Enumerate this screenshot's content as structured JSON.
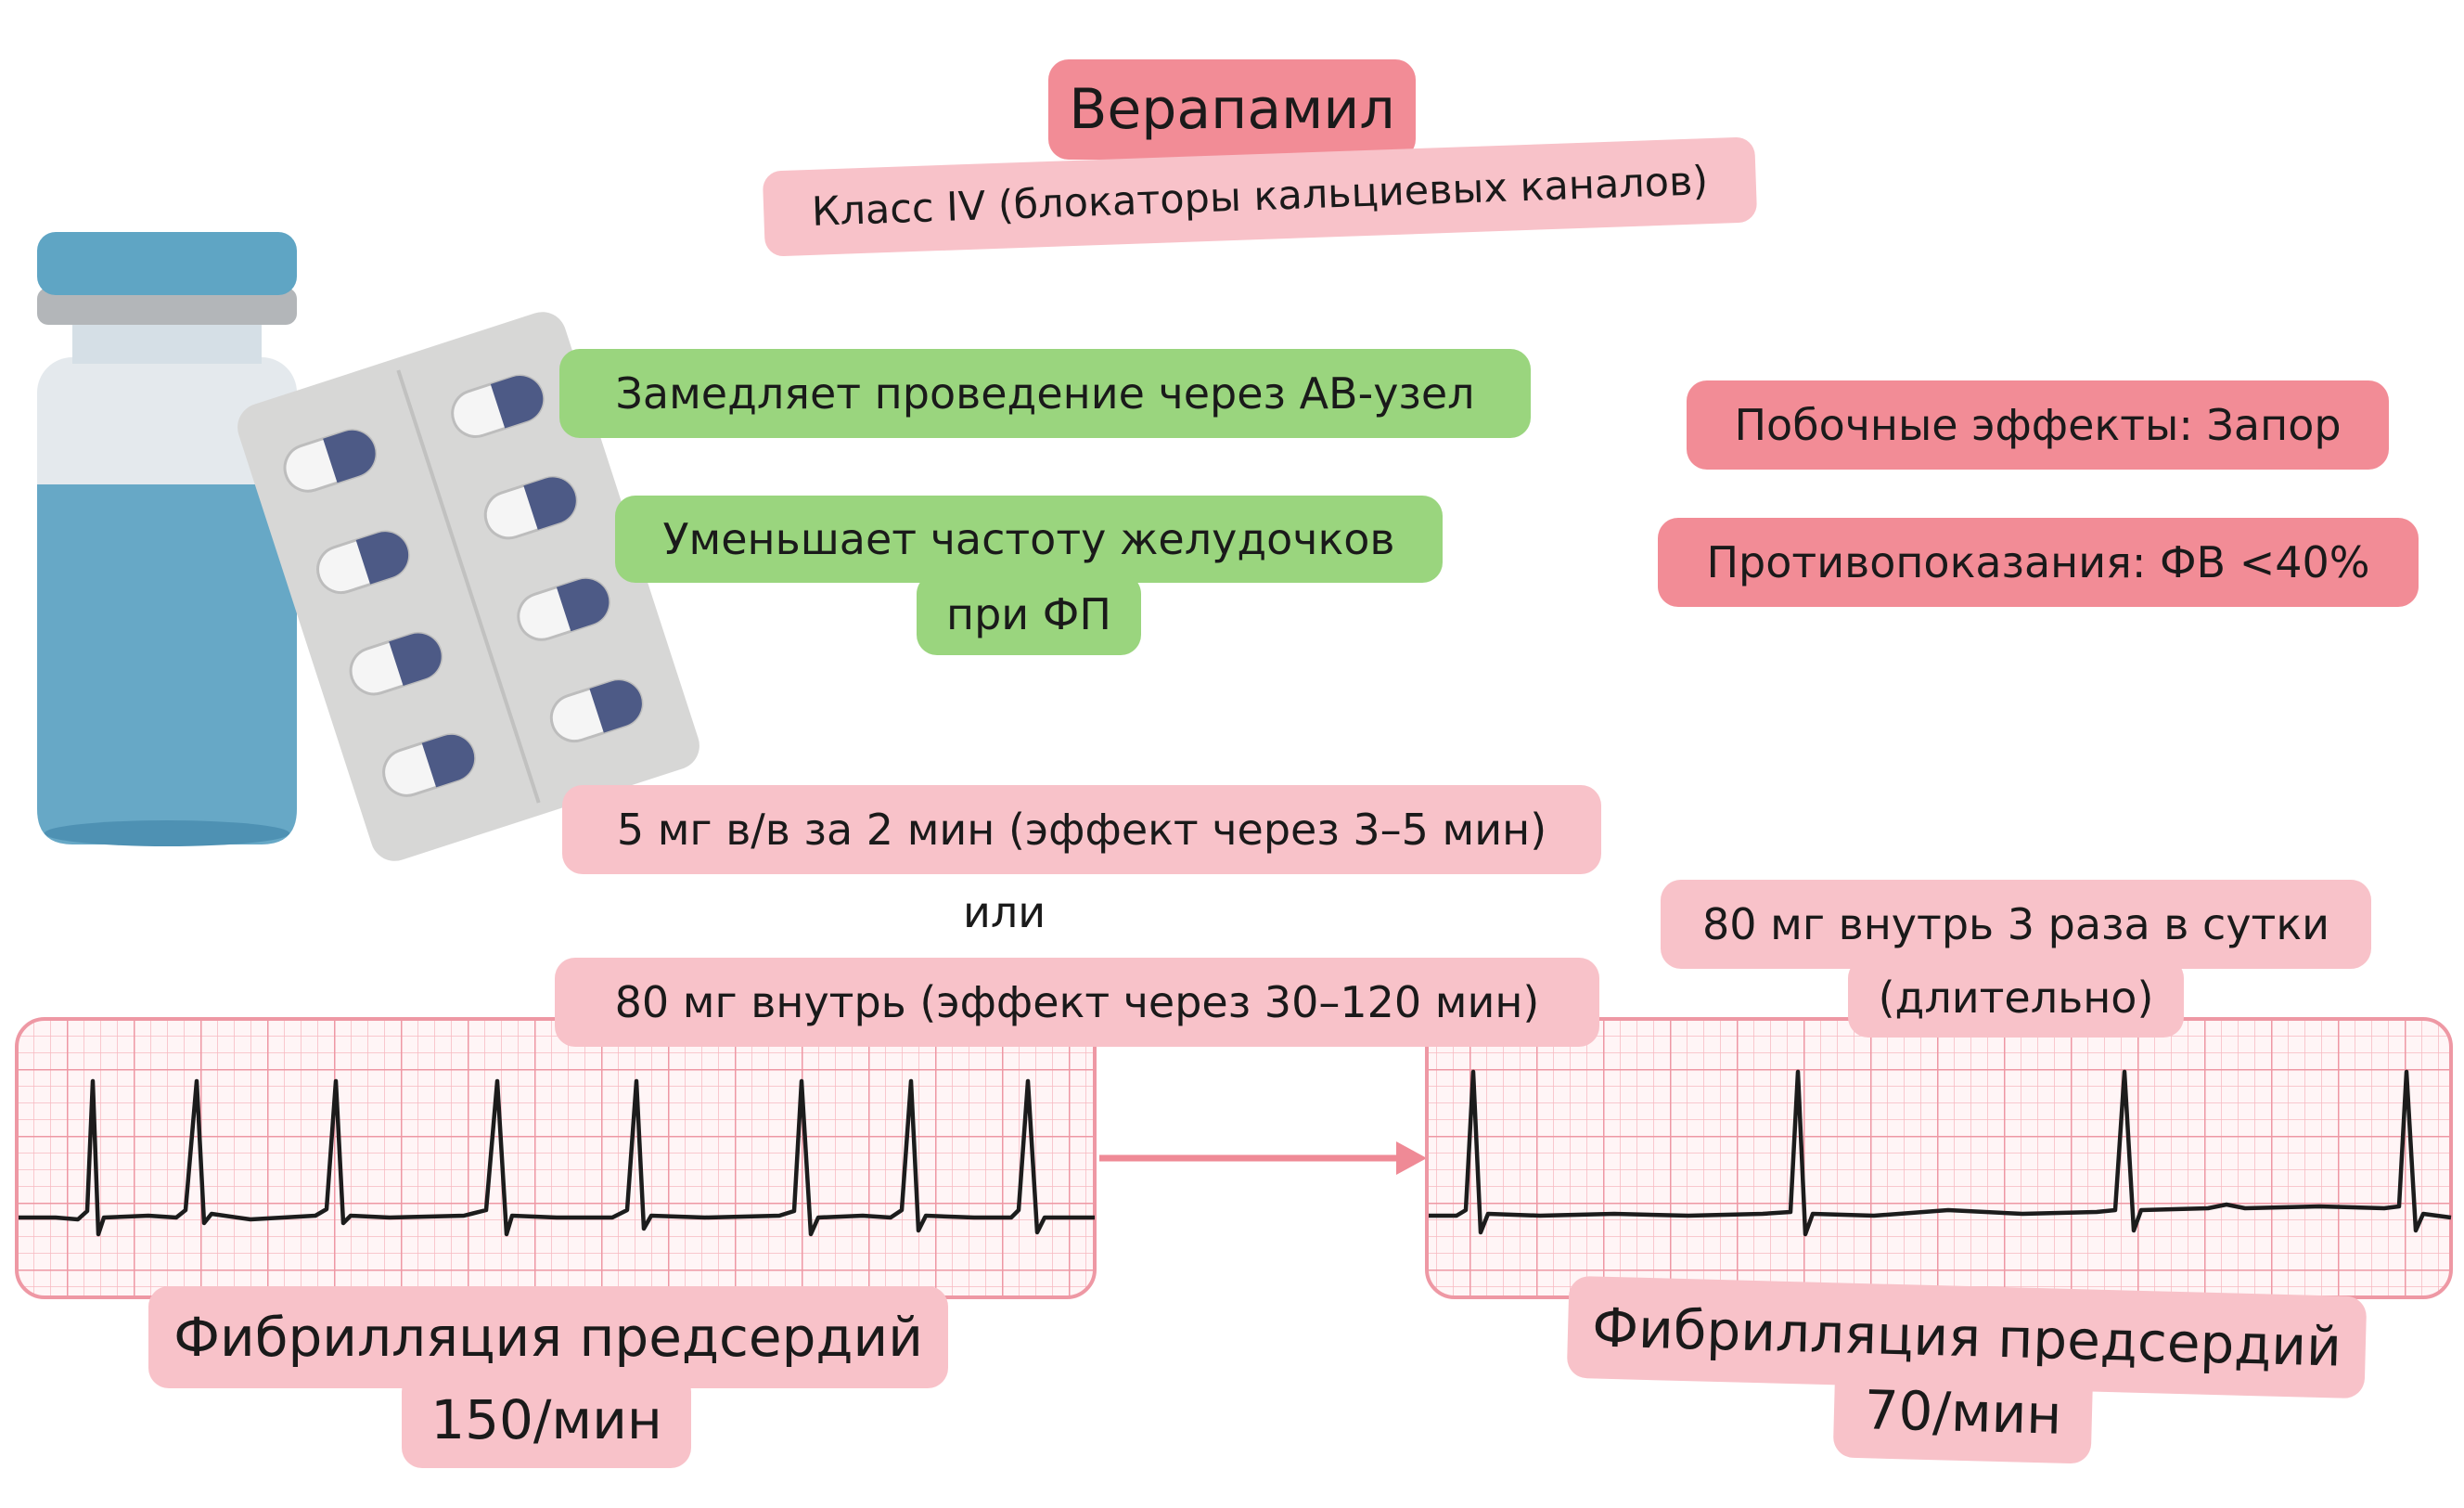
{
  "title": "Верапамил",
  "subtitle": "Класс IV (блокаторы кальциевых каналов)",
  "mechanism": {
    "line1": "Замедляет проведение через АВ-узел",
    "line2a": "Уменьшает частоту желудочков",
    "line2b": "при ФП"
  },
  "side_effects": "Побочные эффекты: Запор",
  "contraindications": "Противопоказания: ФВ <40%",
  "dosing": {
    "iv": "5 мг в/в за 2 мин (эффект через 3–5 мин)",
    "or": "или",
    "oral": "80 мг внутрь (эффект через 30–120 мин)",
    "maintenance_a": "80 мг внутрь 3 раза в сутки",
    "maintenance_b": "(длительно)"
  },
  "before": {
    "label": "Фибрилляция предсердий",
    "rate": "150/мин"
  },
  "after": {
    "label": "Фибрилляция предсердий",
    "rate": "70/мин"
  },
  "colors": {
    "pink": "#f8c2c9",
    "red": "#f28c96",
    "green": "#9ad57e",
    "ecg_grid": "#f4a7b1",
    "arrow": "#ef8a96"
  }
}
